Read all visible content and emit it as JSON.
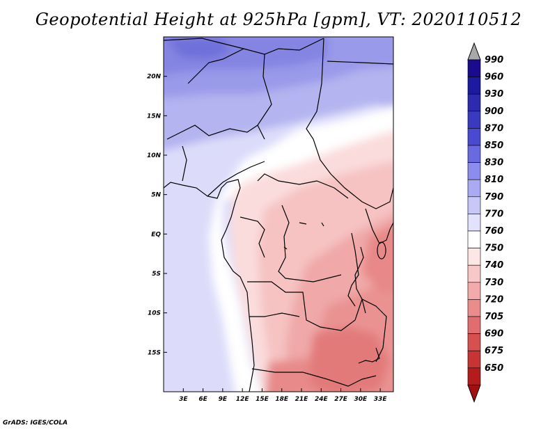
{
  "title": "Geopotential Height at 925hPa [gpm], VT: 2020110512",
  "credit": "GrADS: IGES/COLA",
  "map": {
    "lon_range": [
      0,
      35
    ],
    "lat_range": [
      -20,
      25
    ],
    "lat_ticks": [
      {
        "lat": 20,
        "label": "20N"
      },
      {
        "lat": 15,
        "label": "15N"
      },
      {
        "lat": 10,
        "label": "10N"
      },
      {
        "lat": 5,
        "label": "5N"
      },
      {
        "lat": 0,
        "label": "EQ"
      },
      {
        "lat": -5,
        "label": "5S"
      },
      {
        "lat": -10,
        "label": "10S"
      },
      {
        "lat": -15,
        "label": "15S"
      }
    ],
    "lon_ticks": [
      {
        "lon": 3,
        "label": "3E"
      },
      {
        "lon": 6,
        "label": "6E"
      },
      {
        "lon": 9,
        "label": "9E"
      },
      {
        "lon": 12,
        "label": "12E"
      },
      {
        "lon": 15,
        "label": "15E"
      },
      {
        "lon": 18,
        "label": "18E"
      },
      {
        "lon": 21,
        "label": "21E"
      },
      {
        "lon": 24,
        "label": "24E"
      },
      {
        "lon": 27,
        "label": "27E"
      },
      {
        "lon": 30,
        "label": "30E"
      },
      {
        "lon": 33,
        "label": "33E"
      }
    ]
  },
  "colorbar": {
    "levels": [
      {
        "label": "990",
        "color": "#1a0a8c"
      },
      {
        "label": "960",
        "color": "#1d1aa0"
      },
      {
        "label": "930",
        "color": "#2d2ab0"
      },
      {
        "label": "900",
        "color": "#3a3ac0"
      },
      {
        "label": "870",
        "color": "#4a4ad0"
      },
      {
        "label": "850",
        "color": "#6a6ae0"
      },
      {
        "label": "830",
        "color": "#8c8cec"
      },
      {
        "label": "810",
        "color": "#aaaaf2"
      },
      {
        "label": "790",
        "color": "#c8c8f8"
      },
      {
        "label": "770",
        "color": "#e2e2fc"
      },
      {
        "label": "760",
        "color": "#ffffff"
      },
      {
        "label": "750",
        "color": "#fde6e6"
      },
      {
        "label": "740",
        "color": "#f8c8c8"
      },
      {
        "label": "730",
        "color": "#f2aaaa"
      },
      {
        "label": "720",
        "color": "#ea8c8c"
      },
      {
        "label": "705",
        "color": "#e06e6e"
      },
      {
        "label": "690",
        "color": "#d65050"
      },
      {
        "label": "675",
        "color": "#c83434"
      },
      {
        "label": "650",
        "color": "#b41c1c"
      }
    ],
    "top_arrow_color": "#a8a8a8",
    "bottom_arrow_color": "#a01010"
  }
}
